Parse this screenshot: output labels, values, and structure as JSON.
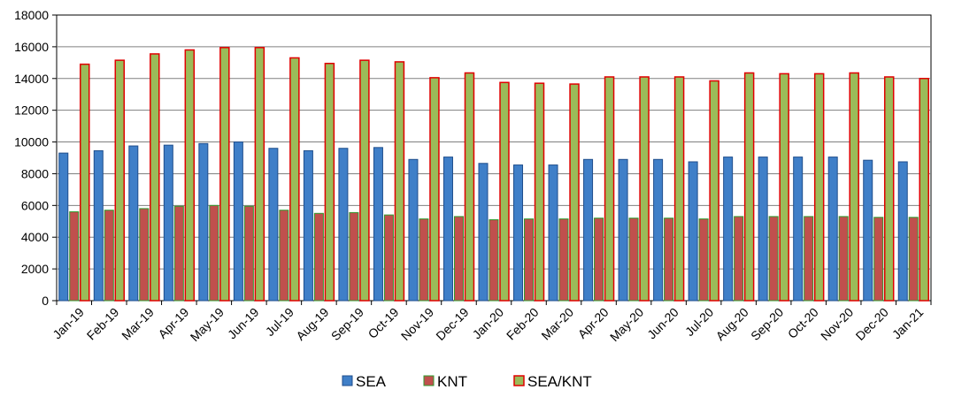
{
  "chart_data": {
    "type": "bar",
    "categories": [
      "Jan-19",
      "Feb-19",
      "Mar-19",
      "Apr-19",
      "May-19",
      "Jun-19",
      "Jul-19",
      "Aug-19",
      "Sep-19",
      "Oct-19",
      "Nov-19",
      "Dec-19",
      "Jan-20",
      "Feb-20",
      "Mar-20",
      "Apr-20",
      "May-20",
      "Jun-20",
      "Jul-20",
      "Aug-20",
      "Sep-20",
      "Oct-20",
      "Nov-20",
      "Dec-20",
      "Jan-21"
    ],
    "series": [
      {
        "name": "SEA",
        "color": "#3F7FC8",
        "border": "#1F4E8C",
        "values": [
          9300,
          9450,
          9750,
          9800,
          9900,
          10000,
          9600,
          9450,
          9600,
          9650,
          8900,
          9050,
          8650,
          8550,
          8550,
          8900,
          8900,
          8900,
          8750,
          9050,
          9050,
          9050,
          9050,
          8850,
          8750
        ]
      },
      {
        "name": "KNT",
        "color": "#C0504D",
        "border": "#2E9B2E",
        "values": [
          5600,
          5700,
          5800,
          5950,
          6000,
          5950,
          5700,
          5500,
          5550,
          5400,
          5150,
          5300,
          5100,
          5150,
          5150,
          5200,
          5200,
          5200,
          5150,
          5300,
          5300,
          5300,
          5300,
          5250,
          5250
        ]
      },
      {
        "name": "SEA/KNT",
        "color": "#9BBB59",
        "border": "#E00000",
        "values": [
          14900,
          15150,
          15550,
          15800,
          15950,
          15950,
          15300,
          14950,
          15150,
          15050,
          14050,
          14350,
          13750,
          13700,
          13650,
          14100,
          14100,
          14100,
          13850,
          14350,
          14300,
          14300,
          14350,
          14100,
          14000
        ]
      }
    ],
    "ylim": [
      0,
      18000
    ],
    "yticks": [
      "0",
      "2000",
      "4000",
      "6000",
      "8000",
      "10000",
      "12000",
      "14000",
      "16000",
      "18000"
    ],
    "grid": true,
    "legend_position": "bottom-center"
  }
}
